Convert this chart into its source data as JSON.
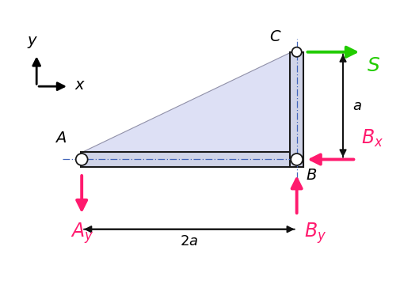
{
  "background": "#ffffff",
  "beam_color": "#d0d4e8",
  "beam_edge_color": "#1a1a1a",
  "triangle_fill": "#dde0f5",
  "triangle_edge": "#9090a8",
  "pink": "#ff1a6e",
  "green": "#22cc00",
  "dark": "#111111",
  "A": [
    0.0,
    0.0
  ],
  "B": [
    2.0,
    0.0
  ],
  "C": [
    2.0,
    1.0
  ],
  "bt": 0.07,
  "vt": 0.065
}
